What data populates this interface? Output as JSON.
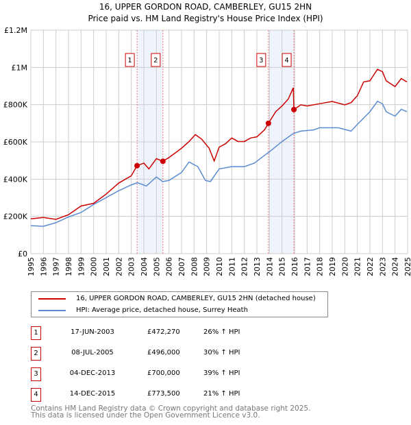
{
  "chart_data": {
    "type": "line",
    "title": "16, UPPER GORDON ROAD, CAMBERLEY, GU15 2HN",
    "subtitle": "Price paid vs. HM Land Registry's House Price Index (HPI)",
    "xlim": [
      1995,
      2025
    ],
    "ylim": [
      0,
      1200000
    ],
    "x_ticks": [
      "1995",
      "1996",
      "1997",
      "1998",
      "1999",
      "2000",
      "2001",
      "2002",
      "2003",
      "2004",
      "2005",
      "2006",
      "2007",
      "2008",
      "2009",
      "2010",
      "2011",
      "2012",
      "2013",
      "2014",
      "2015",
      "2016",
      "2017",
      "2018",
      "2019",
      "2020",
      "2021",
      "2022",
      "2023",
      "2024",
      "2025"
    ],
    "y_ticks": [
      {
        "v": 0,
        "label": "£0"
      },
      {
        "v": 200000,
        "label": "£200K"
      },
      {
        "v": 400000,
        "label": "£400K"
      },
      {
        "v": 600000,
        "label": "£600K"
      },
      {
        "v": 800000,
        "label": "£800K"
      },
      {
        "v": 1000000,
        "label": "£1M"
      },
      {
        "v": 1200000,
        "label": "£1.2M"
      }
    ],
    "grid": true,
    "series": [
      {
        "name": "16, UPPER GORDON ROAD, CAMBERLEY, GU15 2HN (detached house)",
        "color": "#cc0000",
        "x": [
          1995,
          1996,
          1997,
          1998,
          1999,
          2000,
          2001,
          2002,
          2003,
          2003.46,
          2004,
          2004.4,
          2005,
          2005.5,
          2006,
          2007,
          2007.6,
          2008.1,
          2008.6,
          2009.2,
          2009.6,
          2010,
          2010.5,
          2011,
          2011.5,
          2012,
          2012.5,
          2013,
          2013.6,
          2013.92,
          2014.5,
          2015,
          2015.5,
          2015.9,
          2015.95,
          2016.5,
          2017,
          2018,
          2019,
          2020,
          2020.5,
          2021,
          2021.5,
          2022,
          2022.6,
          2023,
          2023.3,
          2024,
          2024.5,
          2024.95
        ],
        "y": [
          187000,
          194000,
          184000,
          209000,
          256000,
          270000,
          320000,
          379000,
          418000,
          472270,
          486000,
          455000,
          510000,
          496000,
          516000,
          566000,
          602000,
          639000,
          615000,
          566000,
          498000,
          572000,
          590000,
          621000,
          602000,
          602000,
          621000,
          627000,
          664000,
          700000,
          762000,
          793000,
          830000,
          891000,
          773500,
          799000,
          793000,
          805000,
          817000,
          799000,
          811000,
          848000,
          922000,
          928000,
          990000,
          977000,
          928000,
          897000,
          940000,
          922000
        ]
      },
      {
        "name": "HPI: Average price, detached house, Surrey Heath",
        "color": "#5b8bd0",
        "x": [
          1995,
          1996,
          1997,
          1998,
          1999,
          2000,
          2001,
          2002,
          2003,
          2003.5,
          2004.2,
          2005,
          2005.5,
          2006,
          2007,
          2007.6,
          2008.3,
          2008.9,
          2009.3,
          2010,
          2011,
          2012,
          2012.8,
          2013.5,
          2014,
          2015,
          2015.9,
          2016.5,
          2017.5,
          2018,
          2019.5,
          2020.5,
          2021,
          2022,
          2022.6,
          2023,
          2023.3,
          2024,
          2024.5,
          2024.95
        ],
        "y": [
          150000,
          147000,
          166000,
          197000,
          221000,
          264000,
          301000,
          338000,
          369000,
          381000,
          363000,
          412000,
          387000,
          393000,
          436000,
          492000,
          467000,
          393000,
          387000,
          455000,
          467000,
          467000,
          486000,
          522000,
          547000,
          602000,
          645000,
          658000,
          664000,
          676000,
          676000,
          658000,
          694000,
          762000,
          818000,
          805000,
          762000,
          738000,
          775000,
          762000
        ]
      }
    ],
    "shaded_ranges": [
      [
        2003.46,
        2005.52
      ],
      [
        2013.92,
        2015.95
      ]
    ],
    "legend_placement": "below"
  },
  "sales": [
    {
      "n": "1",
      "x": 2003.46,
      "date": "17-JUN-2003",
      "price": "£472,270",
      "value": 472270,
      "hpi": "26% ↑ HPI"
    },
    {
      "n": "2",
      "x": 2005.52,
      "date": "08-JUL-2005",
      "price": "£496,000",
      "value": 496000,
      "hpi": "30% ↑ HPI"
    },
    {
      "n": "3",
      "x": 2013.92,
      "date": "04-DEC-2013",
      "price": "£700,000",
      "value": 700000,
      "hpi": "39% ↑ HPI"
    },
    {
      "n": "4",
      "x": 2015.95,
      "date": "14-DEC-2015",
      "price": "£773,500",
      "value": 773500,
      "hpi": "21% ↑ HPI"
    }
  ],
  "footer": {
    "line1": "Contains HM Land Registry data © Crown copyright and database right 2025.",
    "line2": "This data is licensed under the Open Government Licence v3.0."
  }
}
